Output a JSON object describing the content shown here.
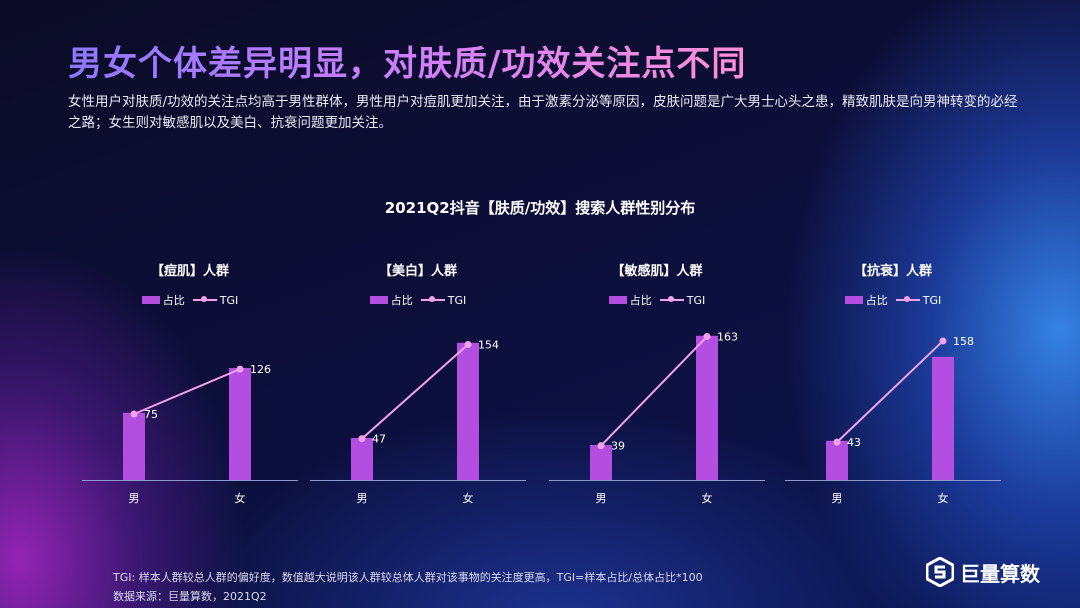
{
  "header": {
    "title": "男女个体差异明显，对肤质/功效关注点不同",
    "description": "女性用户对肤质/功效的关注点均高于男性群体，男性用户对痘肌更加关注，由于激素分泌等原因，皮肤问题是广大男士心头之患，精致肌肤是向男神转变的必经之路；女生则对敏感肌以及美白、抗衰问题更加关注。"
  },
  "chart_title": "2021Q2抖音【肤质/功效】搜索人群性别分布",
  "legend": {
    "bar": "占比",
    "line": "TGI"
  },
  "colors": {
    "bar": "#b44ee0",
    "line": "#f2a2ea",
    "axis": "#8f9ad0"
  },
  "chart_data": [
    {
      "type": "bar",
      "title": "【痘肌】人群",
      "categories": [
        "男",
        "女"
      ],
      "series": [
        {
          "name": "占比",
          "values": [
            0.48,
            0.8
          ]
        },
        {
          "name": "TGI",
          "values": [
            75,
            126
          ]
        }
      ]
    },
    {
      "type": "bar",
      "title": "【美白】人群",
      "categories": [
        "男",
        "女"
      ],
      "series": [
        {
          "name": "占比",
          "values": [
            0.3,
            0.98
          ]
        },
        {
          "name": "TGI",
          "values": [
            47,
            154
          ]
        }
      ]
    },
    {
      "type": "bar",
      "title": "【敏感肌】人群",
      "categories": [
        "男",
        "女"
      ],
      "series": [
        {
          "name": "占比",
          "values": [
            0.25,
            1.03
          ]
        },
        {
          "name": "TGI",
          "values": [
            39,
            163
          ]
        }
      ]
    },
    {
      "type": "bar",
      "title": "【抗衰】人群",
      "categories": [
        "男",
        "女"
      ],
      "series": [
        {
          "name": "占比",
          "values": [
            0.28,
            0.88
          ]
        },
        {
          "name": "TGI",
          "values": [
            43,
            158
          ]
        }
      ]
    }
  ],
  "footnote": {
    "tgi_note": "TGI: 样本人群较总人群的偏好度，数值越大说明该人群较总体人群对该事物的关注度更高，TGI=样本占比/总体占比*100",
    "source": "数据来源：巨量算数，2021Q2"
  },
  "logo": {
    "text": "巨量算数",
    "icon": "hexagon-s-logo-icon"
  }
}
